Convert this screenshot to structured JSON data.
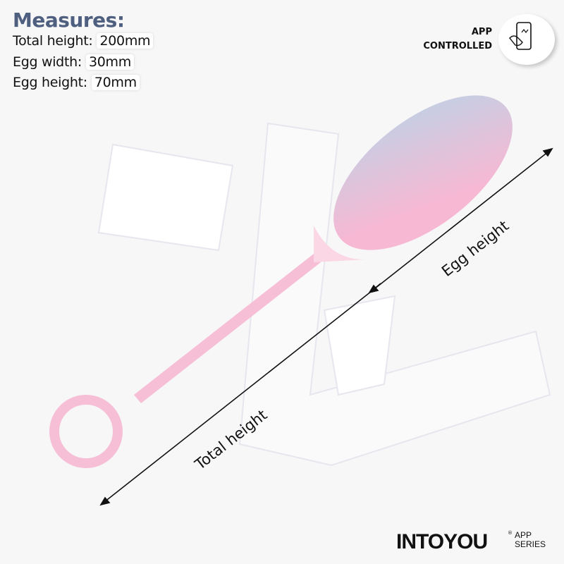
{
  "measures": {
    "title": "Measures:",
    "rows": [
      {
        "label": "Total height:",
        "value": "200mm"
      },
      {
        "label": "Egg width:",
        "value": "30mm"
      },
      {
        "label": "Egg height:",
        "value": "70mm"
      }
    ]
  },
  "badge": {
    "line1": "APP",
    "line2": "CONTROLLED",
    "icon": "phone-touch-icon"
  },
  "annotations": {
    "egg_height": "Egg height",
    "total_height": "Total height"
  },
  "brand": {
    "logo": "INTOYOU",
    "registered": "®",
    "series_line1": "APP",
    "series_line2": "SERIES"
  },
  "colors": {
    "title": "#4f5f7f",
    "product_pink": "#f6bfd6",
    "egg_top": "#c9cde0"
  }
}
